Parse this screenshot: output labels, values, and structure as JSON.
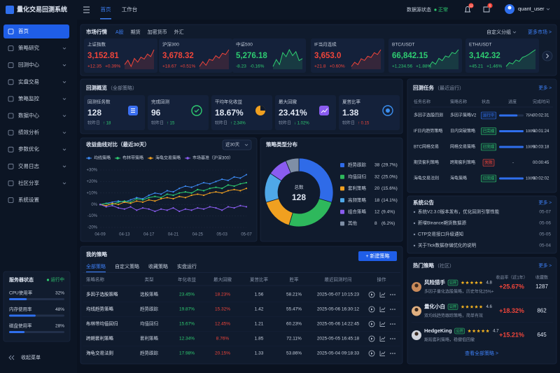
{
  "sidebar": {
    "logo": "量化交易回测系统",
    "menu": [
      "首页",
      "策略研究",
      "回测中心",
      "实盘交易",
      "策略监控",
      "数据中心",
      "绩效分析",
      "参数优化",
      "交易日志",
      "社区分享",
      "系统设置"
    ],
    "server": {
      "title": "服务器状态",
      "status": "运行中",
      "metrics": [
        {
          "name": "CPU使用率",
          "value": 32,
          "label": "32%"
        },
        {
          "name": "内存使用率",
          "value": 48,
          "label": "48%"
        },
        {
          "name": "磁盘使用率",
          "value": 28,
          "label": "28%"
        }
      ]
    },
    "collapse": "收起菜单"
  },
  "topbar": {
    "tabs": [
      "首页",
      "工作台"
    ],
    "source_label": "数据源状态",
    "source_status": "正常",
    "badges": [
      12,
      5
    ],
    "user": "quant_user"
  },
  "market": {
    "title": "市场行情",
    "tabs": [
      "A股",
      "期货",
      "加密货币",
      "外汇"
    ],
    "group": "自定义分组",
    "more": "更多市场 >",
    "cards": [
      {
        "name": "上证指数",
        "price": "3,152.81",
        "change": "+12.35",
        "pct": "+0.39%",
        "color": "#f0453a",
        "spark": [
          3128,
          3135,
          3125,
          3138,
          3132,
          3140,
          3137,
          3145,
          3141,
          3152
        ]
      },
      {
        "name": "沪深300",
        "price": "3,678.32",
        "change": "+18.67",
        "pct": "+0.51%",
        "color": "#f0453a",
        "spark": [
          3650,
          3658,
          3652,
          3662,
          3660,
          3668,
          3664,
          3672,
          3670,
          3678
        ]
      },
      {
        "name": "中证500",
        "price": "5,276.18",
        "change": "-8.23",
        "pct": "-0.16%",
        "color": "#2ecc71",
        "spark": [
          5268,
          5275,
          5270,
          5282,
          5278,
          5285,
          5279,
          5283,
          5274,
          5276
        ]
      },
      {
        "name": "IF当月连续",
        "price": "3,653.0",
        "change": "+21.8",
        "pct": "+0.60%",
        "color": "#f0453a",
        "spark": [
          3625,
          3632,
          3628,
          3638,
          3635,
          3642,
          3640,
          3648,
          3645,
          3653
        ]
      },
      {
        "name": "BTC/USDT",
        "price": "66,842.15",
        "change": "+1,234.56",
        "pct": "+1.88%",
        "color": "#2ecc71",
        "spark": [
          65400,
          65800,
          65600,
          66100,
          65900,
          66300,
          66200,
          66600,
          66500,
          66842
        ]
      },
      {
        "name": "ETH/USDT",
        "price": "3,142.32",
        "change": "+45.21",
        "pct": "+1.46%",
        "color": "#2ecc71",
        "spark": [
          3090,
          3102,
          3098,
          3110,
          3106,
          3118,
          3122,
          3128,
          3135,
          3142
        ]
      }
    ]
  },
  "overview": {
    "title": "回测概览",
    "scope": "（全部策略）",
    "stats": [
      {
        "label": "回测任务数",
        "value": "128",
        "compare": "较昨日",
        "delta": "↑ 18",
        "delta_color": "#2ecc71",
        "icon_color": "#3b6ff0"
      },
      {
        "label": "完成回测",
        "value": "96",
        "compare": "较昨日",
        "delta": "↑ 15",
        "delta_color": "#2ecc71",
        "icon_color": "#2ecc71"
      },
      {
        "label": "平均年化收益",
        "value": "18.67%",
        "compare": "较昨日",
        "delta": "↑ 2.34%",
        "delta_color": "#2ecc71",
        "icon_color": "#f0a020"
      },
      {
        "label": "最大回撤",
        "value": "23.41%",
        "compare": "较昨日",
        "delta": "↓ 1.02%",
        "delta_color": "#2ecc71",
        "icon_color": "#8a5cf0"
      },
      {
        "label": "夏普比率",
        "value": "1.38",
        "compare": "较昨日",
        "delta": "↑ 0.15",
        "delta_color": "#f0453a",
        "icon_color": "#3b8ff0"
      }
    ]
  },
  "tasks": {
    "title": "回测任务",
    "scope": "（最近运行）",
    "more": "更多 >",
    "headers": [
      "任务名称",
      "策略名称",
      "状态",
      "进度",
      "完成时间"
    ],
    "rows": [
      {
        "name": "多因子选股回测",
        "strategy": "多因子策略V2",
        "status": "运行中",
        "status_color": "#2f6fed",
        "progress": {
          "value": 75,
          "label": "75%"
        },
        "time": "00:02:31"
      },
      {
        "name": "IF日内趋势策略",
        "strategy": "日内突破策略",
        "status": "已完成",
        "status_color": "#2ecc71",
        "progress": {
          "value": 100,
          "label": "100%"
        },
        "time": "00:01:24"
      },
      {
        "name": "BTC网格交易",
        "strategy": "网格交易策略",
        "status": "已完成",
        "status_color": "#2ecc71",
        "progress": {
          "value": 100,
          "label": "100%"
        },
        "time": "00:03:18"
      },
      {
        "name": "期货套利策略",
        "strategy": "跨期套利策略",
        "status": "失败",
        "status_color": "#f0453a",
        "progress": {
          "label": "-"
        },
        "time": "00:00:45"
      },
      {
        "name": "海龟交易法则",
        "strategy": "海龟策略",
        "status": "已完成",
        "status_color": "#2ecc71",
        "progress": {
          "value": 100,
          "label": "100%"
        },
        "time": "00:02:02"
      }
    ]
  },
  "chart_data": [
    {
      "type": "line",
      "title": "收益曲线对比（最近30天）",
      "range": "近30天",
      "categories": [
        "04-09",
        null,
        null,
        null,
        "04-13",
        null,
        null,
        null,
        "04-17",
        null,
        null,
        null,
        "04-21",
        null,
        null,
        null,
        "04-25",
        null,
        null,
        null,
        "05-03",
        null,
        null,
        null,
        "05-07"
      ],
      "ylim": [
        -20,
        30
      ],
      "yticks": [
        {
          "value": 30,
          "label": "+30%"
        },
        {
          "value": 20,
          "label": "+20%"
        },
        {
          "value": 10,
          "label": "+10%"
        },
        {
          "value": 0,
          "label": "0%"
        },
        {
          "value": -10,
          "label": "-10%"
        },
        {
          "value": -20,
          "label": "-20%"
        }
      ],
      "grid": true,
      "series": [
        {
          "name": "均线策略",
          "color": "#3d8bf5",
          "values": [
            0,
            1,
            2,
            3,
            2,
            4,
            6,
            5,
            8,
            10,
            9,
            12,
            11,
            14,
            16,
            15,
            17,
            19,
            18,
            20,
            22,
            21,
            24,
            23,
            26
          ]
        },
        {
          "name": "布林带策略",
          "color": "#2ecc71",
          "values": [
            0,
            1,
            0,
            2,
            3,
            2,
            5,
            4,
            6,
            7,
            6,
            9,
            8,
            10,
            11,
            10,
            13,
            12,
            14,
            15,
            14,
            17,
            16,
            18,
            19
          ]
        },
        {
          "name": "海龟交易策略",
          "color": "#f0a020",
          "values": [
            0,
            -1,
            1,
            0,
            2,
            1,
            3,
            2,
            4,
            3,
            5,
            6,
            5,
            7,
            6,
            8,
            9,
            8,
            10,
            11,
            10,
            12,
            13,
            12,
            14
          ]
        },
        {
          "name": "市场基准（沪深300）",
          "color": "#8a5cf0",
          "values": [
            0,
            -2,
            -1,
            -3,
            -4,
            -2,
            -5,
            -3,
            -4,
            -6,
            -4,
            -5,
            -3,
            -6,
            -4,
            -5,
            -3,
            -4,
            -2,
            -3,
            -5,
            -2,
            -3,
            -1,
            -2
          ]
        }
      ]
    },
    {
      "type": "pie",
      "title": "策略类型分布",
      "center_label": "总数",
      "center_value": 128,
      "categories": [
        "趋势跟踪",
        "均值回归",
        "套利策略",
        "高频策略",
        "组合策略",
        "其他"
      ],
      "values": [
        38,
        32,
        20,
        18,
        12,
        8
      ],
      "percent_labels": [
        "(29.7%)",
        "(25.0%)",
        "(15.6%)",
        "(14.1%)",
        "(9.4%)",
        "(6.2%)"
      ],
      "colors": [
        "#2f6be8",
        "#2eb85c",
        "#f0a020",
        "#4fa8e8",
        "#8a5cf0",
        "#7f8fa6"
      ]
    }
  ],
  "strategies": {
    "title": "我的策略",
    "button": "+ 新建策略",
    "tabs": [
      "全部策略",
      "自定义策略",
      "收藏策略",
      "实盘运行"
    ],
    "headers": [
      "策略名称",
      "类型",
      "年化收益",
      "最大回撤",
      "夏普比率",
      "胜率",
      "最近回测时间",
      "操作"
    ],
    "rows": [
      [
        "多因子选股策略",
        "选股策略",
        "23.45%",
        "18.23%",
        "1.56",
        "58.21%",
        "2025-05-07 10:15:23"
      ],
      [
        "均线趋势策略",
        "趋势跟踪",
        "19.87%",
        "15.32%",
        "1.42",
        "55.47%",
        "2025-05-06 16:30:12"
      ],
      [
        "布林带均值回归",
        "均值回归",
        "15.67%",
        "12.45%",
        "1.21",
        "60.23%",
        "2025-05-06 14:22:45"
      ],
      [
        "跨期套利策略",
        "套利策略",
        "12.34%",
        "8.76%",
        "1.85",
        "72.11%",
        "2025-05-05 16:45:18"
      ],
      [
        "海龟交易法则",
        "趋势跟踪",
        "17.98%",
        "20.15%",
        "1.33",
        "53.86%",
        "2025-05-04 09:18:33"
      ]
    ]
  },
  "announcements": {
    "title": "系统公告",
    "more": "更多 >",
    "items": [
      {
        "text": "系统V2.3.0版本发布，优化回测引擎性能",
        "date": "05-07"
      },
      {
        "text": "新增Binance期货数据源",
        "date": "05-06"
      },
      {
        "text": "CTP交易接口升级通知",
        "date": "05-05"
      },
      {
        "text": "关于Tick数据存储优化的说明",
        "date": "05-04"
      }
    ]
  },
  "hot": {
    "title": "热门策略",
    "scope": "（社区）",
    "more": "更多 >",
    "headers": [
      "收益率（近1年）",
      "收藏数"
    ],
    "all": "查看全部策略 >",
    "rows": [
      {
        "name": "风险猎手",
        "badge": "公开",
        "rating": 4.8,
        "desc": "多因子量化选股策略，历史年化25%+",
        "return": "+25.67%",
        "favorites": 1287
      },
      {
        "name": "量化小白",
        "badge": "公开",
        "rating": 4.6,
        "desc": "双均线趋势跟踪策略，简单有效",
        "return": "+18.32%",
        "favorites": 862
      },
      {
        "name": "HedgeKing",
        "badge": "公开",
        "rating": 4.7,
        "desc": "期现套利策略，稳健低回撤",
        "return": "+15.21%",
        "favorites": 645
      }
    ]
  }
}
